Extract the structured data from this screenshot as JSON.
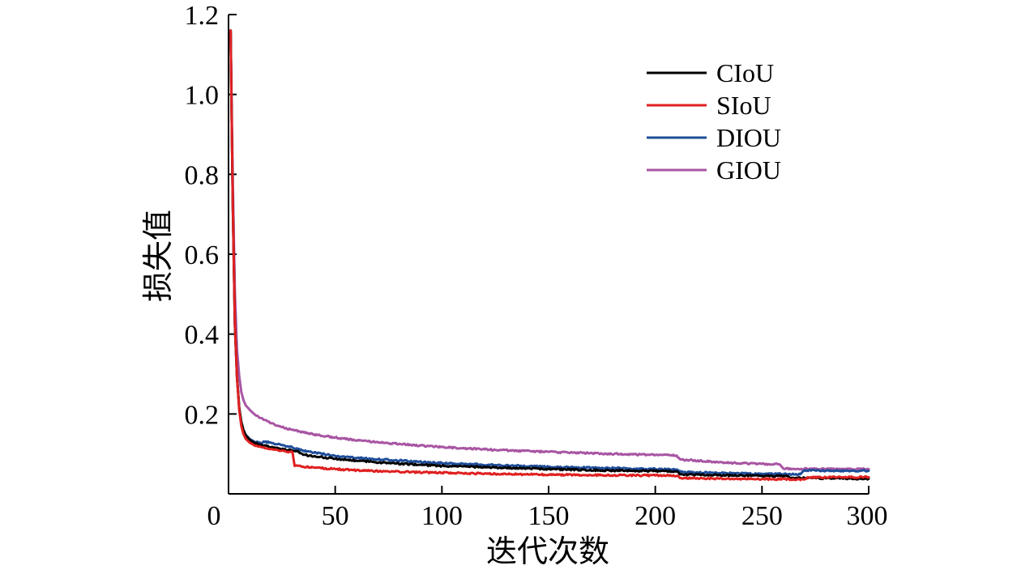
{
  "chart_data": {
    "type": "line",
    "xlabel": "迭代次数",
    "ylabel": "损失值",
    "xlim": [
      0,
      300
    ],
    "ylim": [
      0,
      1.2
    ],
    "x_ticks": [
      0,
      50,
      100,
      150,
      200,
      250,
      300
    ],
    "x_tick_labels": [
      "0",
      "50",
      "100",
      "150",
      "200",
      "250",
      "300"
    ],
    "y_ticks": [
      0.2,
      0.4,
      0.6,
      0.8,
      1.0,
      1.2
    ],
    "y_tick_labels": [
      "0.2",
      "0.4",
      "0.6",
      "0.8",
      "1.0",
      "1.2"
    ],
    "grid": false,
    "legend_position": "top-right",
    "series": [
      {
        "name": "CIoU",
        "color": "#000000",
        "points": [
          [
            1,
            1.16
          ],
          [
            2,
            0.72
          ],
          [
            3,
            0.42
          ],
          [
            4,
            0.29
          ],
          [
            5,
            0.215
          ],
          [
            6,
            0.18
          ],
          [
            7,
            0.16
          ],
          [
            8,
            0.147
          ],
          [
            10,
            0.135
          ],
          [
            12,
            0.128
          ],
          [
            15,
            0.123
          ],
          [
            18,
            0.12
          ],
          [
            20,
            0.117
          ],
          [
            25,
            0.112
          ],
          [
            30,
            0.108
          ],
          [
            32,
            0.107
          ],
          [
            35,
            0.098
          ],
          [
            40,
            0.094
          ],
          [
            50,
            0.088
          ],
          [
            60,
            0.083
          ],
          [
            75,
            0.077
          ],
          [
            100,
            0.07
          ],
          [
            125,
            0.066
          ],
          [
            150,
            0.062
          ],
          [
            175,
            0.059
          ],
          [
            200,
            0.057
          ],
          [
            210,
            0.056
          ],
          [
            212,
            0.049
          ],
          [
            230,
            0.047
          ],
          [
            250,
            0.045
          ],
          [
            262,
            0.044
          ],
          [
            264,
            0.04
          ],
          [
            280,
            0.039
          ],
          [
            300,
            0.038
          ]
        ]
      },
      {
        "name": "SIoU",
        "color": "#e02020",
        "points": [
          [
            1,
            1.16
          ],
          [
            2,
            0.72
          ],
          [
            3,
            0.42
          ],
          [
            4,
            0.29
          ],
          [
            5,
            0.21
          ],
          [
            6,
            0.17
          ],
          [
            7,
            0.15
          ],
          [
            8,
            0.138
          ],
          [
            10,
            0.128
          ],
          [
            12,
            0.122
          ],
          [
            15,
            0.118
          ],
          [
            18,
            0.114
          ],
          [
            20,
            0.112
          ],
          [
            25,
            0.108
          ],
          [
            29,
            0.105
          ],
          [
            30,
            0.104
          ],
          [
            31,
            0.07
          ],
          [
            35,
            0.068
          ],
          [
            40,
            0.066
          ],
          [
            50,
            0.062
          ],
          [
            60,
            0.059
          ],
          [
            75,
            0.056
          ],
          [
            100,
            0.053
          ],
          [
            125,
            0.05
          ],
          [
            150,
            0.048
          ],
          [
            175,
            0.047
          ],
          [
            200,
            0.046
          ],
          [
            210,
            0.045
          ],
          [
            212,
            0.04
          ],
          [
            230,
            0.038
          ],
          [
            250,
            0.037
          ],
          [
            270,
            0.036
          ],
          [
            272,
            0.041
          ],
          [
            300,
            0.042
          ]
        ]
      },
      {
        "name": "DIOU",
        "color": "#1f4e9a",
        "points": [
          [
            1,
            1.16
          ],
          [
            2,
            0.72
          ],
          [
            3,
            0.42
          ],
          [
            4,
            0.29
          ],
          [
            5,
            0.215
          ],
          [
            6,
            0.18
          ],
          [
            7,
            0.16
          ],
          [
            8,
            0.148
          ],
          [
            10,
            0.137
          ],
          [
            12,
            0.131
          ],
          [
            15,
            0.127
          ],
          [
            17,
            0.13
          ],
          [
            20,
            0.128
          ],
          [
            25,
            0.122
          ],
          [
            30,
            0.116
          ],
          [
            35,
            0.108
          ],
          [
            40,
            0.103
          ],
          [
            50,
            0.095
          ],
          [
            60,
            0.09
          ],
          [
            75,
            0.085
          ],
          [
            100,
            0.077
          ],
          [
            125,
            0.072
          ],
          [
            150,
            0.068
          ],
          [
            175,
            0.065
          ],
          [
            200,
            0.062
          ],
          [
            210,
            0.061
          ],
          [
            212,
            0.055
          ],
          [
            230,
            0.052
          ],
          [
            250,
            0.05
          ],
          [
            268,
            0.049
          ],
          [
            270,
            0.059
          ],
          [
            280,
            0.058
          ],
          [
            300,
            0.058
          ]
        ]
      },
      {
        "name": "GIOU",
        "color": "#a855a3",
        "points": [
          [
            1,
            1.16
          ],
          [
            2,
            0.78
          ],
          [
            3,
            0.5
          ],
          [
            4,
            0.36
          ],
          [
            5,
            0.295
          ],
          [
            6,
            0.255
          ],
          [
            7,
            0.235
          ],
          [
            8,
            0.222
          ],
          [
            10,
            0.21
          ],
          [
            12,
            0.2
          ],
          [
            15,
            0.19
          ],
          [
            20,
            0.177
          ],
          [
            25,
            0.167
          ],
          [
            30,
            0.16
          ],
          [
            35,
            0.154
          ],
          [
            40,
            0.149
          ],
          [
            50,
            0.141
          ],
          [
            60,
            0.134
          ],
          [
            75,
            0.127
          ],
          [
            100,
            0.117
          ],
          [
            125,
            0.11
          ],
          [
            150,
            0.105
          ],
          [
            175,
            0.101
          ],
          [
            200,
            0.097
          ],
          [
            210,
            0.096
          ],
          [
            212,
            0.086
          ],
          [
            230,
            0.079
          ],
          [
            250,
            0.075
          ],
          [
            258,
            0.074
          ],
          [
            260,
            0.063
          ],
          [
            280,
            0.062
          ],
          [
            300,
            0.062
          ]
        ]
      }
    ]
  }
}
